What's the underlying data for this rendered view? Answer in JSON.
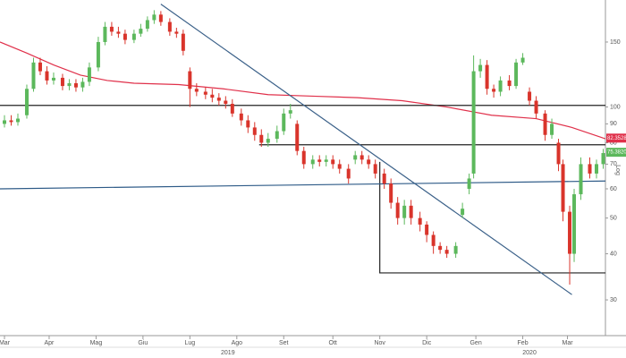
{
  "chart_data": {
    "type": "candlestick",
    "yscale": "log",
    "scale_label": "Log",
    "ylim": [
      24,
      195
    ],
    "yticks": [
      30,
      40,
      50,
      60,
      70,
      80,
      90,
      100,
      150
    ],
    "xlim": [
      0,
      271
    ],
    "xticks": [
      {
        "value": 2,
        "label": "Mar"
      },
      {
        "value": 22,
        "label": "Apr"
      },
      {
        "value": 43,
        "label": "Mag"
      },
      {
        "value": 64,
        "label": "Giu"
      },
      {
        "value": 85,
        "label": "Lug"
      },
      {
        "value": 106,
        "label": "Ago"
      },
      {
        "value": 127,
        "label": "Set"
      },
      {
        "value": 149,
        "label": "Ott"
      },
      {
        "value": 170,
        "label": "Nov"
      },
      {
        "value": 191,
        "label": "Dic"
      },
      {
        "value": 213,
        "label": "Gen"
      },
      {
        "value": 234,
        "label": "Feb"
      },
      {
        "value": 254,
        "label": "Mar"
      }
    ],
    "years": [
      {
        "value": 102,
        "label": "2019"
      },
      {
        "value": 237,
        "label": "2020"
      }
    ],
    "up_color": "#5cb85c",
    "down_color": "#d9342b",
    "x": [
      2,
      5,
      8,
      12,
      15,
      18,
      21,
      24,
      28,
      31,
      34,
      37,
      40,
      44,
      47,
      50,
      53,
      56,
      60,
      63,
      66,
      69,
      72,
      76,
      79,
      82,
      85,
      88,
      92,
      95,
      98,
      101,
      104,
      108,
      111,
      114,
      117,
      120,
      124,
      127,
      130,
      133,
      136,
      140,
      143,
      146,
      149,
      152,
      156,
      159,
      162,
      165,
      168,
      172,
      175,
      178,
      181,
      184,
      188,
      191,
      194,
      197,
      200,
      204,
      207,
      210,
      212,
      215,
      218,
      221,
      224,
      228,
      231,
      234,
      237,
      240,
      244,
      247,
      250,
      252,
      255,
      257,
      260,
      264,
      267,
      270
    ],
    "open": [
      90,
      92,
      91,
      95,
      112,
      132,
      125,
      118,
      120,
      114,
      116,
      113,
      117,
      128,
      150,
      165,
      160,
      158,
      152,
      158,
      163,
      172,
      178,
      170,
      160,
      158,
      125,
      112,
      110,
      108,
      106,
      104,
      102,
      96,
      92,
      88,
      84,
      80,
      82,
      86,
      96,
      90,
      76,
      70,
      72,
      71,
      72,
      70,
      68,
      72,
      74,
      72,
      70,
      66,
      62,
      55,
      50,
      54,
      50,
      48,
      45,
      42,
      41,
      40,
      51,
      60,
      66,
      125,
      130,
      112,
      110,
      118,
      114,
      132,
      110,
      104,
      96,
      84,
      80,
      70,
      52,
      40,
      58,
      70,
      66,
      70
    ],
    "high": [
      95,
      95,
      96,
      115,
      136,
      136,
      129,
      124,
      123,
      119,
      119,
      120,
      132,
      155,
      170,
      170,
      165,
      162,
      162,
      168,
      176,
      183,
      182,
      174,
      164,
      162,
      128,
      116,
      113,
      112,
      109,
      107,
      105,
      99,
      95,
      91,
      87,
      85,
      89,
      99,
      102,
      92,
      78,
      74,
      74,
      74,
      74,
      72,
      70,
      76,
      76,
      74,
      72,
      68,
      64,
      57,
      56,
      56,
      52,
      49,
      46,
      43,
      42,
      43,
      55,
      66,
      138,
      135,
      134,
      115,
      121,
      122,
      135,
      140,
      113,
      107,
      98,
      93,
      82,
      72,
      54,
      60,
      73,
      73,
      72,
      77
    ],
    "low": [
      88,
      89,
      89,
      93,
      110,
      122,
      115,
      115,
      111,
      111,
      110,
      110,
      114,
      125,
      147,
      156,
      154,
      148,
      149,
      155,
      160,
      168,
      166,
      156,
      154,
      138,
      100,
      107,
      105,
      103,
      101,
      99,
      94,
      89,
      85,
      81,
      78,
      78,
      80,
      84,
      93,
      74,
      68,
      68,
      69,
      69,
      68,
      66,
      62,
      70,
      70,
      68,
      64,
      60,
      53,
      48,
      48,
      48,
      46,
      43,
      40,
      40,
      39,
      39,
      50,
      58,
      64,
      120,
      108,
      106,
      107,
      111,
      112,
      130,
      101,
      93,
      81,
      82,
      67,
      49,
      33,
      38,
      56,
      64,
      64,
      68
    ],
    "close": [
      92,
      91,
      93,
      112,
      132,
      125,
      118,
      120,
      114,
      116,
      113,
      117,
      128,
      150,
      165,
      160,
      158,
      152,
      158,
      163,
      172,
      178,
      170,
      160,
      158,
      142,
      112,
      110,
      108,
      106,
      104,
      102,
      96,
      92,
      88,
      84,
      80,
      82,
      86,
      96,
      98,
      76,
      70,
      72,
      71,
      72,
      70,
      68,
      64,
      74,
      72,
      70,
      66,
      62,
      55,
      50,
      54,
      50,
      48,
      45,
      42,
      41,
      40,
      42,
      53,
      64,
      125,
      130,
      112,
      110,
      118,
      114,
      132,
      136,
      104,
      96,
      84,
      90,
      70,
      52,
      40,
      58,
      70,
      66,
      70,
      75
    ],
    "lines": [
      {
        "color": "#e0304a",
        "x": [
          0,
          12,
          24,
          36,
          48,
          60,
          80,
          100,
          120,
          140,
          160,
          180,
          200,
          220,
          240,
          256,
          271
        ],
        "values": [
          150,
          140,
          130,
          122,
          118,
          116,
          115,
          112,
          108,
          107,
          106,
          104,
          100,
          95,
          93,
          88,
          82
        ]
      },
      {
        "color": "#222222",
        "x": [
          0,
          271
        ],
        "values": [
          101,
          101
        ]
      },
      {
        "color": "#222222",
        "x": [
          116,
          271
        ],
        "values": [
          79,
          79
        ]
      },
      {
        "color": "#222222",
        "x": [
          170,
          170,
          271
        ],
        "values": [
          71,
          35.5,
          35.5
        ]
      },
      {
        "color": "#3b6189",
        "x": [
          72,
          256
        ],
        "values": [
          190,
          31
        ]
      },
      {
        "color": "#2d5a87",
        "x": [
          0,
          271
        ],
        "values": [
          60,
          63
        ]
      }
    ],
    "price_labels": [
      {
        "value": 82.3528,
        "label": "82.3528",
        "color": "#e0304a"
      },
      {
        "value": 75.382,
        "label": "75.3820",
        "color": "#5cb85c"
      }
    ]
  }
}
